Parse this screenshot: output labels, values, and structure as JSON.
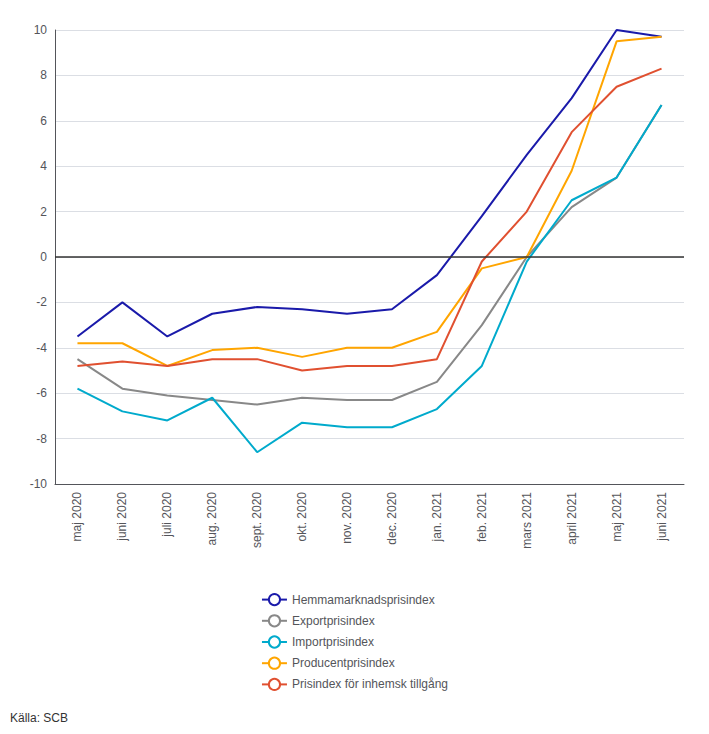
{
  "chart_data": {
    "type": "line",
    "categories": [
      "maj 2020",
      "juni 2020",
      "juli 2020",
      "aug. 2020",
      "sept. 2020",
      "okt. 2020",
      "nov. 2020",
      "dec. 2020",
      "jan. 2021",
      "feb. 2021",
      "mars 2021",
      "april 2021",
      "maj 2021",
      "juni 2021"
    ],
    "series": [
      {
        "name": "Hemmamarknadsprisindex",
        "color": "#1a1aaa",
        "values": [
          -3.5,
          -2.0,
          -3.5,
          -2.5,
          -2.2,
          -2.3,
          -2.5,
          -2.3,
          -0.8,
          1.8,
          4.5,
          7.0,
          10.0,
          9.7
        ]
      },
      {
        "name": "Exportprisindex",
        "color": "#888888",
        "values": [
          -4.5,
          -5.8,
          -6.1,
          -6.3,
          -6.5,
          -6.2,
          -6.3,
          -6.3,
          -5.5,
          -3.0,
          0.0,
          2.2,
          3.5,
          6.7
        ]
      },
      {
        "name": "Importprisindex",
        "color": "#00AACC",
        "values": [
          -5.8,
          -6.8,
          -7.2,
          -6.2,
          -8.6,
          -7.3,
          -7.5,
          -7.5,
          -6.7,
          -4.8,
          -0.2,
          2.5,
          3.5,
          6.7
        ]
      },
      {
        "name": "Producentprisindex",
        "color": "#FFA500",
        "values": [
          -3.8,
          -3.8,
          -4.8,
          -4.1,
          -4.0,
          -4.4,
          -4.0,
          -4.0,
          -3.3,
          -0.5,
          0.0,
          3.8,
          9.5,
          9.7
        ]
      },
      {
        "name": "Prisindex för inhemsk tillgång",
        "color": "#E05030",
        "values": [
          -4.8,
          -4.6,
          -4.8,
          -4.5,
          -4.5,
          -5.0,
          -4.8,
          -4.8,
          -4.5,
          -0.2,
          2.0,
          5.5,
          7.5,
          8.3
        ]
      }
    ],
    "ylim": [
      -10,
      10
    ],
    "yticks": [
      -10,
      -8,
      -6,
      -4,
      -2,
      0,
      2,
      4,
      6,
      8,
      10
    ],
    "grid": true,
    "legend": "bottom",
    "annotations": [
      "Källa: SCB"
    ]
  }
}
